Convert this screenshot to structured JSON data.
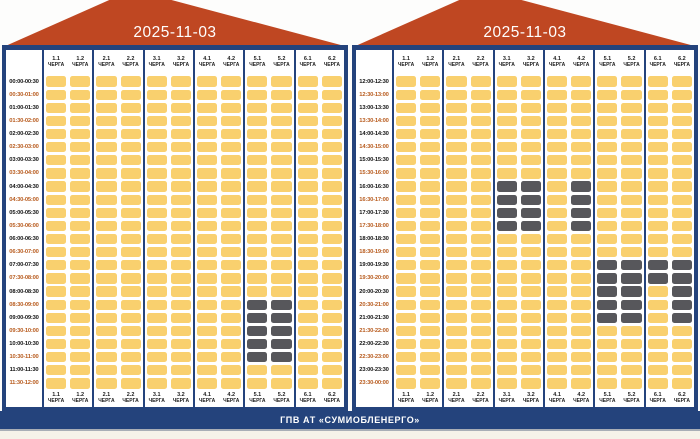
{
  "page": {
    "footer_label": "ГПВ АТ «СУМИОБЛЕНЕРГО»"
  },
  "colors": {
    "roof": "#bf4722",
    "frame_blue": "#24437c",
    "cell_on": "#f9d06e",
    "cell_off": "#57575b",
    "time_even": "#141414",
    "time_odd": "#b85c1f",
    "footer_bg": "#24437c",
    "footer_text": "#ffffff",
    "bottom_strip": "#f6f2e9"
  },
  "chart_data": {
    "type": "heatmap",
    "title": "2025-11-03",
    "queue_word": "ЧЕРГА",
    "queues": [
      "1.1",
      "1.2",
      "2.1",
      "2.2",
      "3.1",
      "3.2",
      "4.1",
      "4.2",
      "5.1",
      "5.2",
      "6.1",
      "6.2"
    ],
    "cell_states": {
      "on_color_meaning": "power on (yellow)",
      "off_color_meaning": "power off (dark)"
    },
    "panels": [
      {
        "date": "2025-11-03",
        "time_slots": [
          "00:00-00:30",
          "00:30-01:00",
          "01:00-01:30",
          "01:30-02:00",
          "02:00-02:30",
          "02:30-03:00",
          "03:00-03:30",
          "03:30-04:00",
          "04:00-04:30",
          "04:30-05:00",
          "05:00-05:30",
          "05:30-06:00",
          "06:00-06:30",
          "06:30-07:00",
          "07:00-07:30",
          "07:30-08:00",
          "08:00-08:30",
          "08:30-09:00",
          "09:00-09:30",
          "09:30-10:00",
          "10:00-10:30",
          "10:30-11:00",
          "11:00-11:30",
          "11:30-12:00"
        ],
        "outages": {
          "5.1": [
            17,
            18,
            19,
            20,
            21
          ],
          "5.2": [
            17,
            18,
            19,
            20,
            21
          ]
        }
      },
      {
        "date": "2025-11-03",
        "time_slots": [
          "12:00-12:30",
          "12:30-13:00",
          "13:00-13:30",
          "13:30-14:00",
          "14:00-14:30",
          "14:30-15:00",
          "15:00-15:30",
          "15:30-16:00",
          "16:00-16:30",
          "16:30-17:00",
          "17:00-17:30",
          "17:30-18:00",
          "18:00-18:30",
          "18:30-19:00",
          "19:00-19:30",
          "19:30-20:00",
          "20:00-20:30",
          "20:30-21:00",
          "21:00-21:30",
          "21:30-22:00",
          "22:00-22:30",
          "22:30-23:00",
          "23:00-23:30",
          "23:30-00:00"
        ],
        "outages": {
          "3.1": [
            8,
            9,
            10,
            11
          ],
          "3.2": [
            8,
            9,
            10,
            11
          ],
          "4.2": [
            8,
            9,
            10,
            11
          ],
          "5.1": [
            14,
            15,
            16,
            17,
            18
          ],
          "5.2": [
            14,
            15,
            16,
            17,
            18
          ],
          "6.1": [
            14,
            15
          ],
          "6.2": [
            14,
            15,
            16,
            17,
            18
          ]
        }
      }
    ]
  }
}
